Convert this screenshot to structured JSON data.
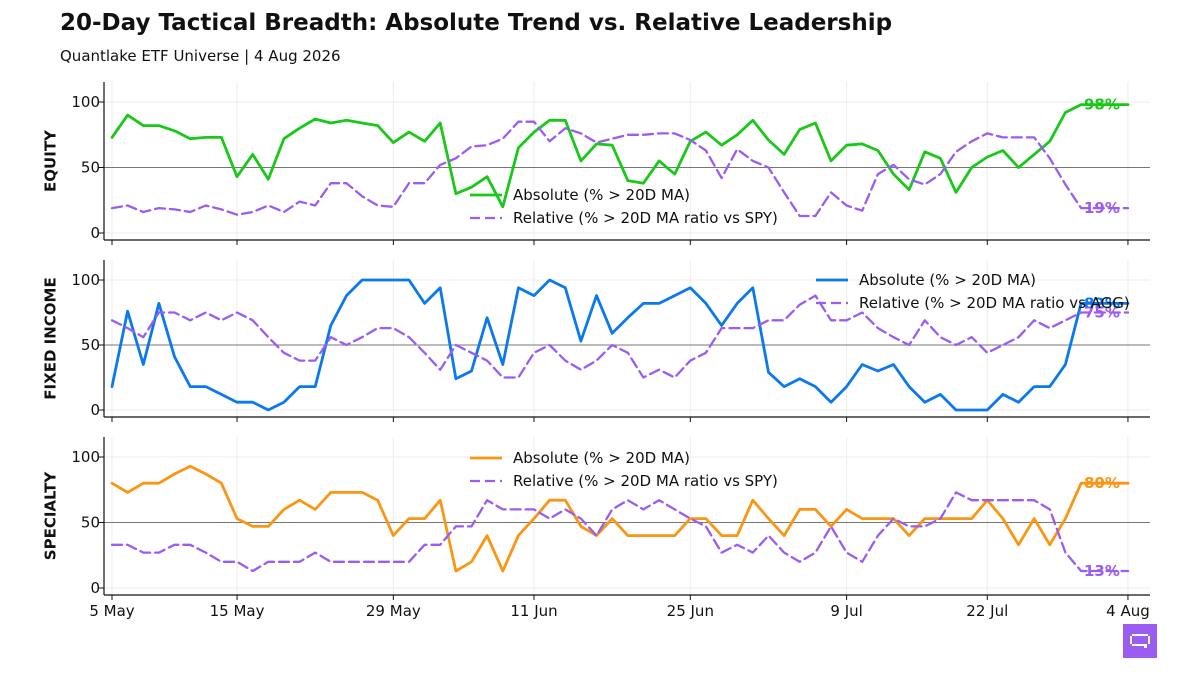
{
  "header": {
    "title": "20-Day Tactical Breadth: Absolute Trend vs. Relative Leadership",
    "subtitle": "Quantlake ETF Universe  |  4 Aug 2026"
  },
  "colors": {
    "equity": "#19c819",
    "fixed_income": "#0a78f0",
    "specialty": "#fa9614",
    "relative": "#9b5cf2",
    "logo_bg": "#9b5cf2"
  },
  "logo_icon": "brand-logo-icon",
  "chart_data": {
    "type": "line",
    "x": [
      "5 May",
      "6 May",
      "7 May",
      "8 May",
      "11 May",
      "12 May",
      "13 May",
      "14 May",
      "15 May",
      "18 May",
      "19 May",
      "20 May",
      "21 May",
      "22 May",
      "25 May",
      "26 May",
      "27 May",
      "28 May",
      "29 May",
      "1 Jun",
      "2 Jun",
      "3 Jun",
      "4 Jun",
      "5 Jun",
      "8 Jun",
      "9 Jun",
      "10 Jun",
      "11 Jun",
      "12 Jun",
      "15 Jun",
      "16 Jun",
      "17 Jun",
      "18 Jun",
      "19 Jun",
      "22 Jun",
      "23 Jun",
      "24 Jun",
      "25 Jun",
      "26 Jun",
      "29 Jun",
      "30 Jun",
      "1 Jul",
      "2 Jul",
      "3 Jul",
      "6 Jul",
      "7 Jul",
      "8 Jul",
      "9 Jul",
      "10 Jul",
      "13 Jul",
      "14 Jul",
      "15 Jul",
      "16 Jul",
      "17 Jul",
      "20 Jul",
      "21 Jul",
      "22 Jul",
      "23 Jul",
      "24 Jul",
      "27 Jul",
      "28 Jul",
      "29 Jul",
      "30 Jul",
      "31 Jul",
      "3 Aug",
      "4 Aug"
    ],
    "x_ticks": [
      "5 May",
      "15 May",
      "29 May",
      "11 Jun",
      "25 Jun",
      "9 Jul",
      "22 Jul",
      "4 Aug"
    ],
    "ylim": [
      0,
      100
    ],
    "y_ticks": [
      0,
      50,
      100
    ],
    "reference_line": 50,
    "grid": true,
    "panels": [
      {
        "ylabel": "EQUITY",
        "legend_position": "center",
        "series": [
          {
            "name": "Absolute (% > 20D MA)",
            "style": "solid",
            "end_label": "98%",
            "values": [
              73,
              90,
              82,
              82,
              78,
              72,
              73,
              73,
              43,
              60,
              41,
              72,
              80,
              87,
              84,
              86,
              84,
              82,
              69,
              77,
              70,
              84,
              30,
              35,
              43,
              20,
              65,
              77,
              86,
              86,
              55,
              68,
              67,
              40,
              38,
              55,
              45,
              70,
              77,
              67,
              75,
              86,
              71,
              60,
              79,
              84,
              55,
              67,
              68,
              63,
              45,
              33,
              62,
              57,
              31,
              50,
              58,
              63,
              50,
              60,
              70,
              92,
              98,
              98,
              98,
              98
            ]
          },
          {
            "name": "Relative (% > 20D MA ratio vs SPY)",
            "style": "dashed",
            "end_label": "19%",
            "values": [
              19,
              21,
              16,
              19,
              18,
              16,
              21,
              18,
              14,
              16,
              21,
              16,
              24,
              21,
              38,
              38,
              28,
              21,
              20,
              38,
              38,
              52,
              57,
              66,
              67,
              72,
              85,
              85,
              70,
              80,
              76,
              69,
              72,
              75,
              75,
              76,
              76,
              71,
              63,
              42,
              64,
              55,
              50,
              31,
              13,
              13,
              31,
              21,
              17,
              45,
              52,
              41,
              37,
              45,
              62,
              70,
              76,
              73,
              73,
              73,
              57,
              37,
              19,
              19,
              19,
              19
            ]
          }
        ]
      },
      {
        "ylabel": "FIXED INCOME",
        "legend_position": "upper right",
        "series": [
          {
            "name": "Absolute (% > 20D MA)",
            "style": "solid",
            "end_label": "82%",
            "values": [
              18,
              76,
              35,
              82,
              41,
              18,
              18,
              12,
              6,
              6,
              0,
              6,
              18,
              18,
              65,
              88,
              100,
              100,
              100,
              100,
              82,
              94,
              24,
              30,
              71,
              35,
              94,
              88,
              100,
              94,
              53,
              88,
              59,
              71,
              82,
              82,
              88,
              94,
              82,
              65,
              82,
              94,
              29,
              18,
              24,
              18,
              6,
              18,
              35,
              30,
              35,
              18,
              6,
              12,
              0,
              0,
              0,
              12,
              6,
              18,
              18,
              35,
              82,
              82,
              82,
              82
            ]
          },
          {
            "name": "Relative (% > 20D MA ratio vs AGG)",
            "style": "dashed",
            "end_label": "75%",
            "values": [
              69,
              63,
              56,
              75,
              75,
              69,
              75,
              69,
              75,
              69,
              56,
              44,
              38,
              38,
              56,
              50,
              56,
              63,
              63,
              56,
              44,
              31,
              50,
              44,
              38,
              25,
              25,
              44,
              50,
              38,
              31,
              38,
              50,
              44,
              25,
              31,
              25,
              38,
              44,
              63,
              63,
              63,
              69,
              69,
              81,
              88,
              69,
              69,
              75,
              63,
              56,
              50,
              69,
              56,
              50,
              56,
              44,
              50,
              56,
              69,
              63,
              69,
              75,
              75,
              75,
              75
            ]
          }
        ]
      },
      {
        "ylabel": "SPECIALTY",
        "legend_position": "upper center",
        "series": [
          {
            "name": "Absolute (% > 20D MA)",
            "style": "solid",
            "end_label": "80%",
            "values": [
              80,
              73,
              80,
              80,
              87,
              93,
              87,
              80,
              53,
              47,
              47,
              60,
              67,
              60,
              73,
              73,
              73,
              67,
              40,
              53,
              53,
              67,
              13,
              20,
              40,
              13,
              40,
              53,
              67,
              67,
              47,
              40,
              53,
              40,
              40,
              40,
              40,
              53,
              53,
              40,
              40,
              67,
              53,
              40,
              60,
              60,
              47,
              60,
              53,
              53,
              53,
              40,
              53,
              53,
              53,
              53,
              67,
              53,
              33,
              53,
              33,
              53,
              80,
              80,
              80,
              80
            ]
          },
          {
            "name": "Relative (% > 20D MA ratio vs SPY)",
            "style": "dashed",
            "end_label": "13%",
            "values": [
              33,
              33,
              27,
              27,
              33,
              33,
              27,
              20,
              20,
              13,
              20,
              20,
              20,
              27,
              20,
              20,
              20,
              20,
              20,
              20,
              33,
              33,
              47,
              47,
              67,
              60,
              60,
              60,
              53,
              60,
              53,
              40,
              60,
              67,
              60,
              67,
              60,
              53,
              47,
              27,
              33,
              27,
              40,
              27,
              20,
              27,
              47,
              27,
              20,
              40,
              53,
              47,
              47,
              53,
              73,
              67,
              67,
              67,
              67,
              67,
              60,
              27,
              13,
              13,
              13,
              13
            ]
          }
        ]
      }
    ]
  }
}
